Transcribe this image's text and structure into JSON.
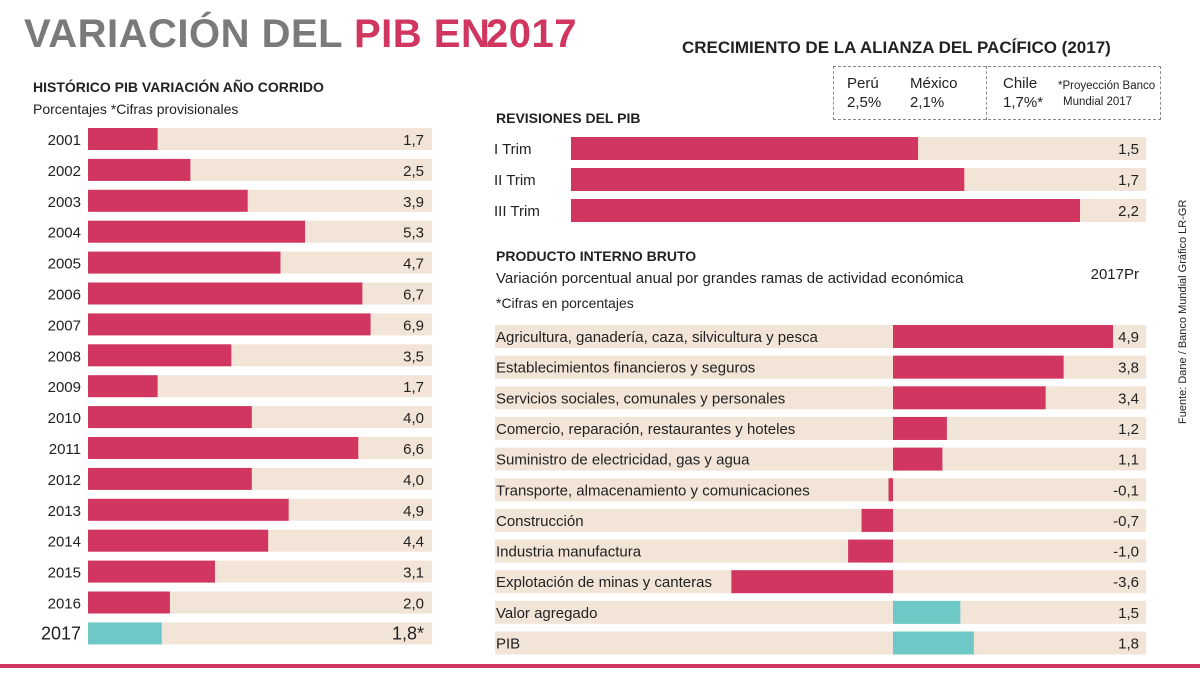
{
  "title": {
    "part1": "VARIACIÓN DEL ",
    "part2": "PIB EN",
    "year": "2017"
  },
  "alliance": {
    "title": "CRECIMIENTO DE LA ALIANZA DEL PACÍFICO (2017)",
    "countries": [
      {
        "name": "Perú",
        "value": "2,5%"
      },
      {
        "name": "México",
        "value": "2,1%"
      },
      {
        "name": "Chile",
        "value": "1,7%*"
      }
    ],
    "note_line1": "*Proyección Banco",
    "note_line2": "Mundial  2017"
  },
  "source": "Fuente: Dane / Banco Mundial     Gráfico LR-GR",
  "colors": {
    "bar": "#d0365f",
    "highlight": "#6ec9c6",
    "track": "#f2e5d8",
    "rule": "#d0365f"
  },
  "chart_data": [
    {
      "type": "bar",
      "title": "HISTÓRICO PIB VARIACIÓN AÑO CORRIDO",
      "subtitle": "Porcentajes *Cifras provisionales",
      "categories": [
        "2001",
        "2002",
        "2003",
        "2004",
        "2005",
        "2006",
        "2007",
        "2008",
        "2009",
        "2010",
        "2011",
        "2012",
        "2013",
        "2014",
        "2015",
        "2016",
        "2017"
      ],
      "values": [
        1.7,
        2.5,
        3.9,
        5.3,
        4.7,
        6.7,
        6.9,
        3.5,
        1.7,
        4.0,
        6.6,
        4.0,
        4.9,
        4.4,
        3.1,
        2.0,
        1.8
      ],
      "labels": [
        "1,7",
        "2,5",
        "3,9",
        "5,3",
        "4,7",
        "6,7",
        "6,9",
        "3,5",
        "1,7",
        "4,0",
        "6,6",
        "4,0",
        "4,9",
        "4,4",
        "3,1",
        "2,0",
        "1,8*"
      ],
      "highlight": [
        "2017"
      ],
      "xlim": [
        0,
        8.4
      ]
    },
    {
      "type": "bar",
      "title": "REVISIONES DEL PIB",
      "categories": [
        "I Trim",
        "II Trim",
        "III Trim"
      ],
      "values": [
        1.5,
        1.7,
        2.2
      ],
      "labels": [
        "1,5",
        "1,7",
        "2,2"
      ],
      "xlim": [
        0,
        2.5
      ]
    },
    {
      "type": "bar",
      "title": "PRODUCTO INTERNO BRUTO",
      "subtitle": "Variación porcentual anual por grandes ramas de actividad económica",
      "note": "*Cifras en porcentajes",
      "column_header": "2017Pr",
      "categories": [
        "Agricultura, ganadería, caza, silvicultura y pesca",
        "Establecimientos financieros y seguros",
        "Servicios sociales, comunales y personales",
        "Comercio, reparación, restaurantes y hoteles",
        "Suministro de electricidad, gas y agua",
        "Transporte, almacenamiento y comunicaciones",
        "Construcción",
        "Industria manufactura",
        "Explotación de minas y canteras",
        "Valor agregado",
        "PIB"
      ],
      "values": [
        4.9,
        3.8,
        3.4,
        1.2,
        1.1,
        -0.1,
        -0.7,
        -1.0,
        -3.6,
        1.5,
        1.8
      ],
      "labels": [
        "4,9",
        "3,8",
        "3,4",
        "1,2",
        "1,1",
        "-0,1",
        "-0,7",
        "-1,0",
        "-3,6",
        "1,5",
        "1,8"
      ],
      "highlight": [
        "Valor agregado",
        "PIB"
      ],
      "xlim": [
        -3.6,
        4.9
      ]
    }
  ]
}
